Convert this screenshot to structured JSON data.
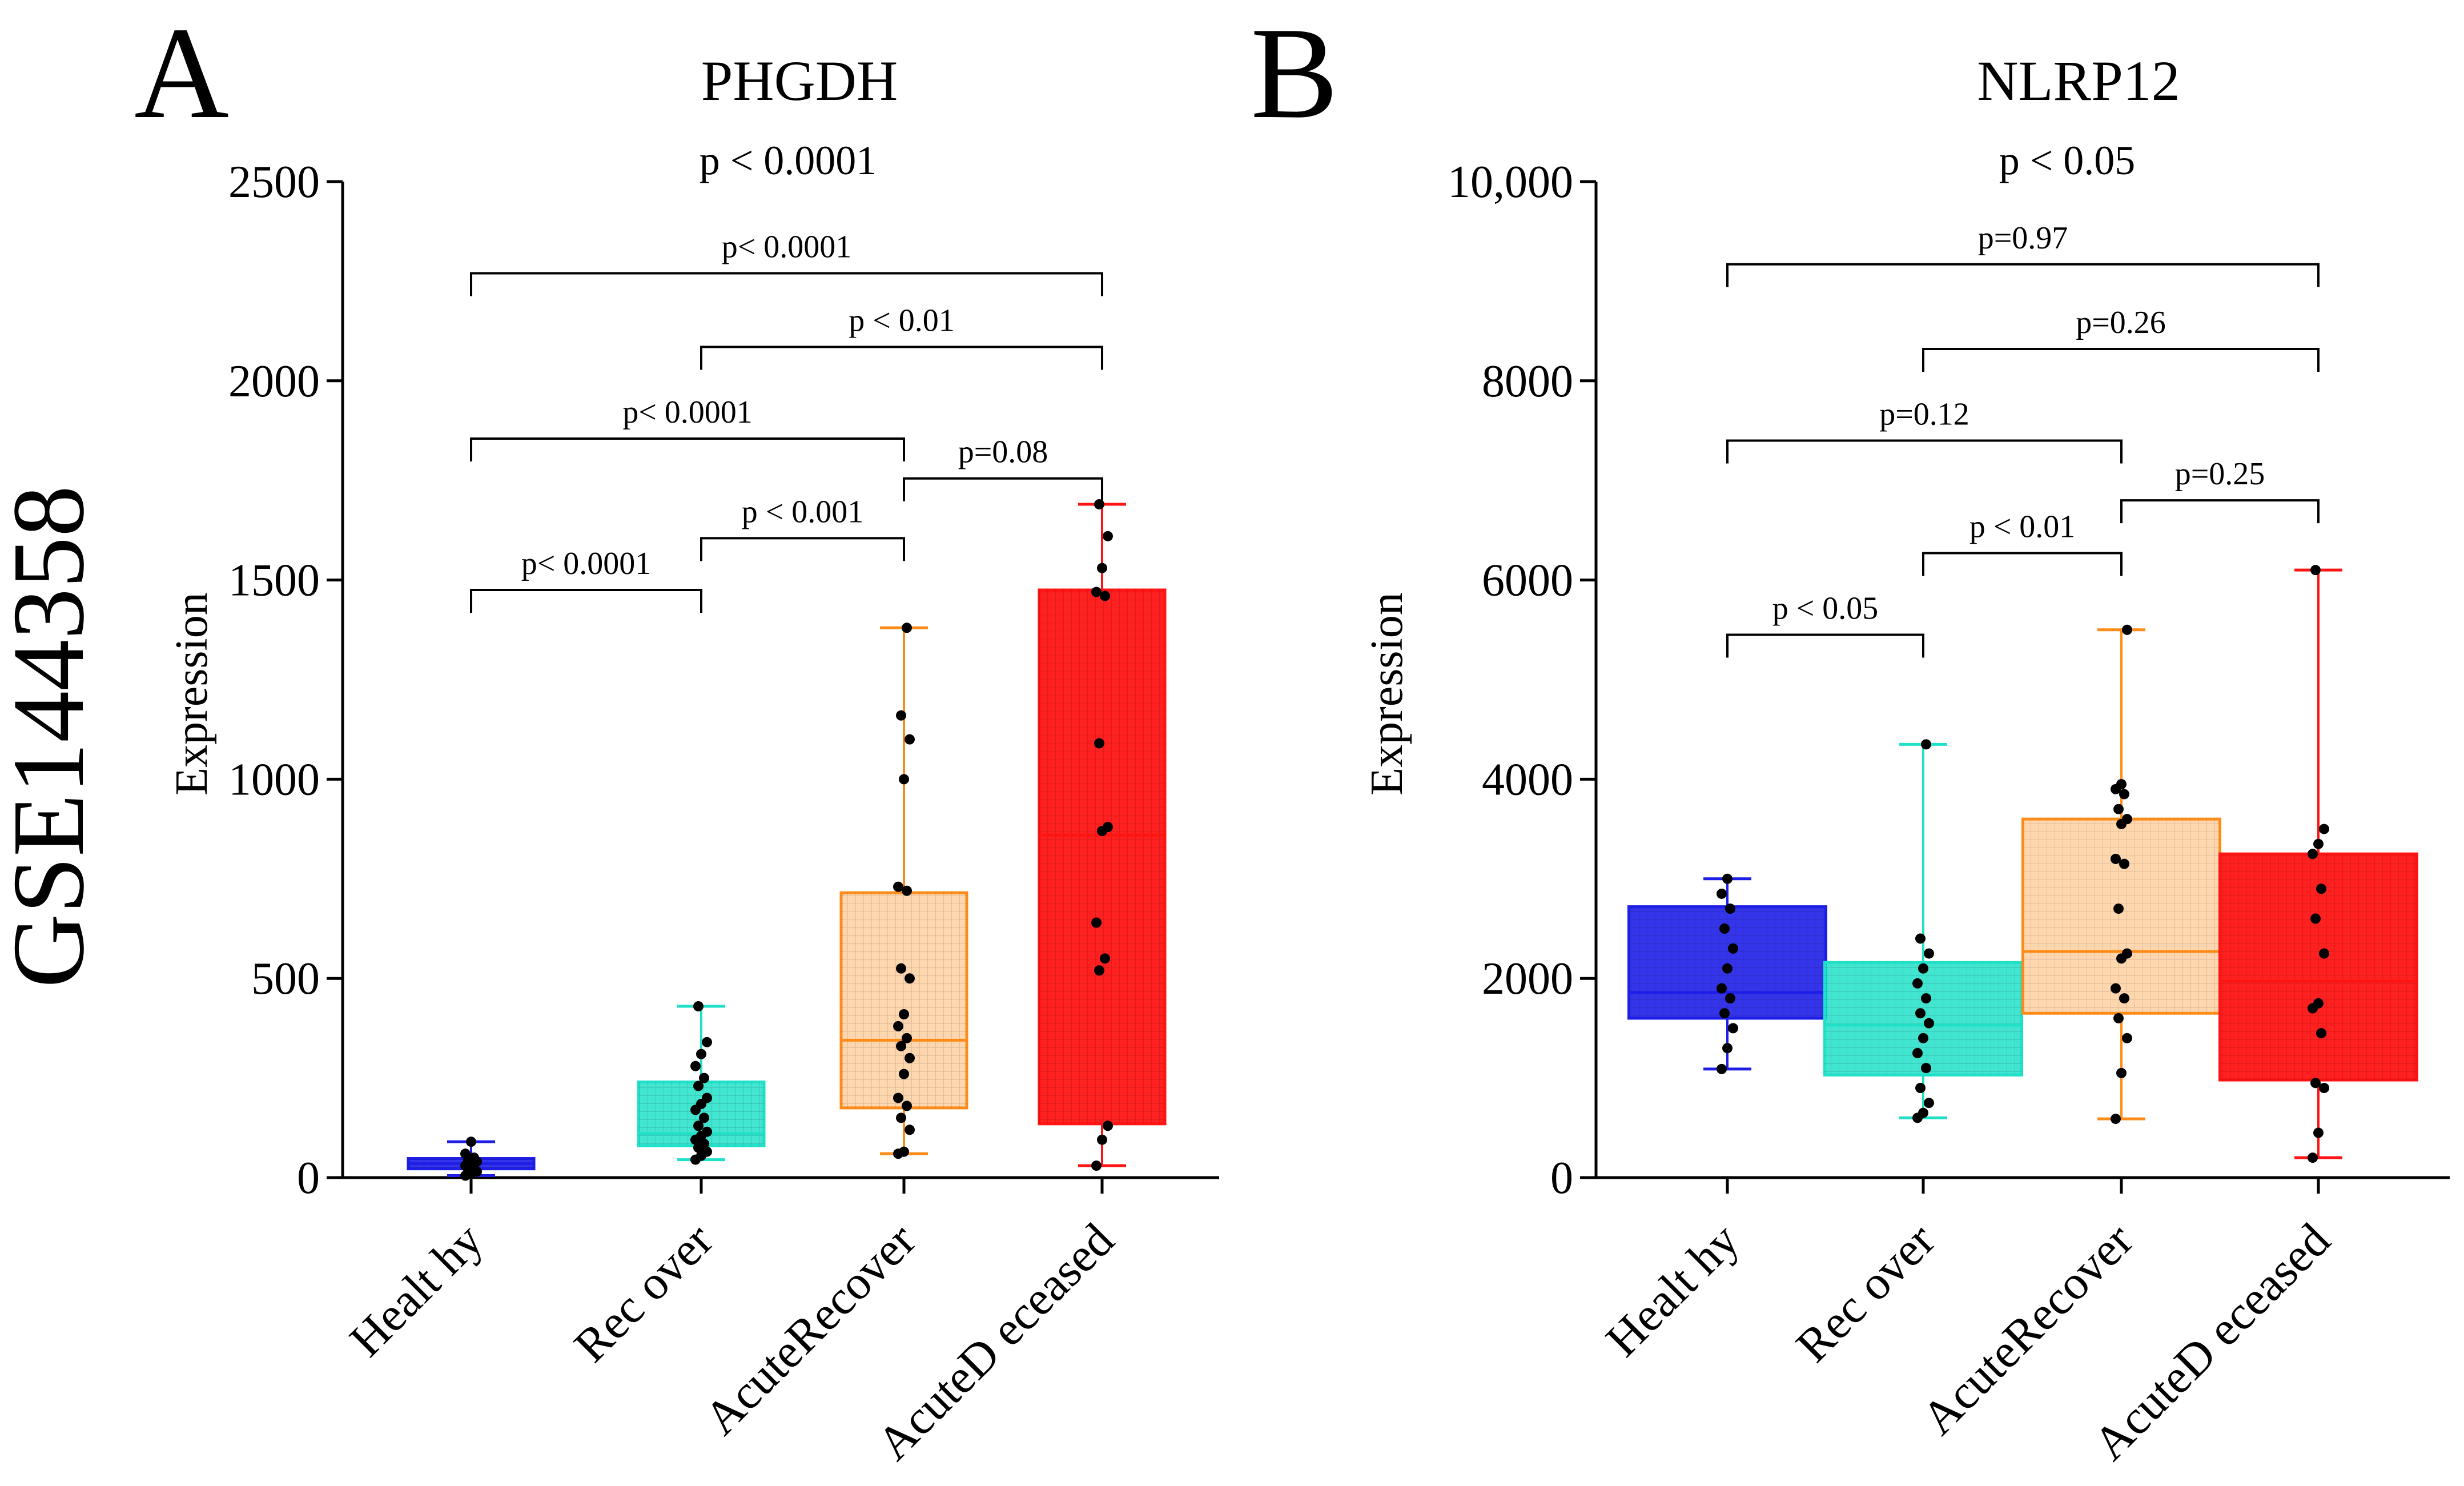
{
  "figure": {
    "side_label": "GSE144358"
  },
  "chart_data": [
    {
      "panel": "A",
      "type": "box",
      "title": "PHGDH",
      "overall_p": "p < 0.0001",
      "ylabel": "Expression",
      "ylim": [
        0,
        2500
      ],
      "yticks": [
        0,
        500,
        1000,
        1500,
        2000,
        2500
      ],
      "ytick_labels": [
        "0",
        "500",
        "1000",
        "1500",
        "2000",
        "2500"
      ],
      "categories": [
        "Healt hy",
        "Rec over",
        "AcuteRecover",
        "AcuteD eceased"
      ],
      "groups": [
        {
          "name": "Healthy",
          "color": "#1e1ee6",
          "min": 5,
          "q1": 22,
          "median": 35,
          "q3": 48,
          "max": 90,
          "points": [
            5,
            10,
            15,
            20,
            25,
            30,
            35,
            40,
            45,
            50,
            60,
            90
          ]
        },
        {
          "name": "Recover",
          "color": "#20e0c8",
          "min": 45,
          "q1": 80,
          "median": 110,
          "q3": 240,
          "max": 430,
          "points": [
            45,
            55,
            65,
            75,
            85,
            95,
            105,
            115,
            130,
            150,
            170,
            185,
            200,
            230,
            250,
            280,
            310,
            340,
            430
          ]
        },
        {
          "name": "AcuteRecover",
          "color": "#ff8c1a",
          "min": 60,
          "q1": 175,
          "median": 345,
          "q3": 715,
          "max": 1380,
          "points": [
            60,
            65,
            120,
            150,
            180,
            200,
            260,
            300,
            330,
            350,
            380,
            410,
            500,
            525,
            720,
            730,
            1000,
            1100,
            1160,
            1380
          ]
        },
        {
          "name": "AcuteDeceased",
          "color": "#ff1414",
          "min": 30,
          "q1": 135,
          "median": 860,
          "q3": 1475,
          "max": 1690,
          "points": [
            30,
            95,
            130,
            520,
            550,
            640,
            870,
            880,
            1090,
            1460,
            1470,
            1530,
            1610,
            1690
          ]
        }
      ],
      "comparisons": [
        {
          "from": 0,
          "to": 1,
          "label": "p< 0.0001",
          "y": 1475
        },
        {
          "from": 1,
          "to": 2,
          "label": "p < 0.001",
          "y": 1605
        },
        {
          "from": 2,
          "to": 3,
          "label": "p=0.08",
          "y": 1755
        },
        {
          "from": 0,
          "to": 2,
          "label": "p< 0.0001",
          "y": 1855
        },
        {
          "from": 1,
          "to": 3,
          "label": "p < 0.01",
          "y": 2085
        },
        {
          "from": 0,
          "to": 3,
          "label": "p< 0.0001",
          "y": 2270
        }
      ]
    },
    {
      "panel": "B",
      "type": "box",
      "title": "NLRP12",
      "overall_p": "p < 0.05",
      "ylabel": "Expression",
      "ylim": [
        0,
        10000
      ],
      "yticks": [
        0,
        2000,
        4000,
        6000,
        8000,
        10000
      ],
      "ytick_labels": [
        "0",
        "2000",
        "4000",
        "6000",
        "8000",
        "10,000"
      ],
      "categories": [
        "Healt hy",
        "Rec over",
        "AcuteRecover",
        "AcuteD eceased"
      ],
      "groups": [
        {
          "name": "Healthy",
          "color": "#1e1ee6",
          "min": 1090,
          "q1": 1600,
          "median": 1860,
          "q3": 2720,
          "max": 3000,
          "points": [
            1090,
            1300,
            1500,
            1650,
            1800,
            1900,
            2100,
            2300,
            2500,
            2700,
            2850,
            3000
          ]
        },
        {
          "name": "Recover",
          "color": "#20e0c8",
          "min": 600,
          "q1": 1030,
          "median": 1530,
          "q3": 2160,
          "max": 4350,
          "points": [
            600,
            650,
            750,
            900,
            1100,
            1250,
            1400,
            1550,
            1650,
            1800,
            1950,
            2100,
            2250,
            2400,
            4350
          ]
        },
        {
          "name": "AcuteRecover",
          "color": "#ff8c1a",
          "min": 590,
          "q1": 1650,
          "median": 2270,
          "q3": 3600,
          "max": 5500,
          "points": [
            590,
            1050,
            1400,
            1600,
            1800,
            1900,
            2200,
            2250,
            2700,
            3150,
            3200,
            3550,
            3600,
            3700,
            3850,
            3900,
            3950,
            5500
          ]
        },
        {
          "name": "AcuteDeceased",
          "color": "#ff1414",
          "min": 200,
          "q1": 980,
          "median": 1970,
          "q3": 3250,
          "max": 6100,
          "points": [
            200,
            450,
            900,
            950,
            1450,
            1700,
            1750,
            2250,
            2600,
            2900,
            3250,
            3350,
            3500,
            6100
          ]
        }
      ],
      "comparisons": [
        {
          "from": 0,
          "to": 1,
          "label": "p < 0.05",
          "y": 5450
        },
        {
          "from": 1,
          "to": 2,
          "label": "p < 0.01",
          "y": 6270
        },
        {
          "from": 2,
          "to": 3,
          "label": "p=0.25",
          "y": 6800
        },
        {
          "from": 0,
          "to": 2,
          "label": "p=0.12",
          "y": 7400
        },
        {
          "from": 1,
          "to": 3,
          "label": "p=0.26",
          "y": 8320
        },
        {
          "from": 0,
          "to": 3,
          "label": "p=0.97",
          "y": 9170
        }
      ]
    }
  ]
}
